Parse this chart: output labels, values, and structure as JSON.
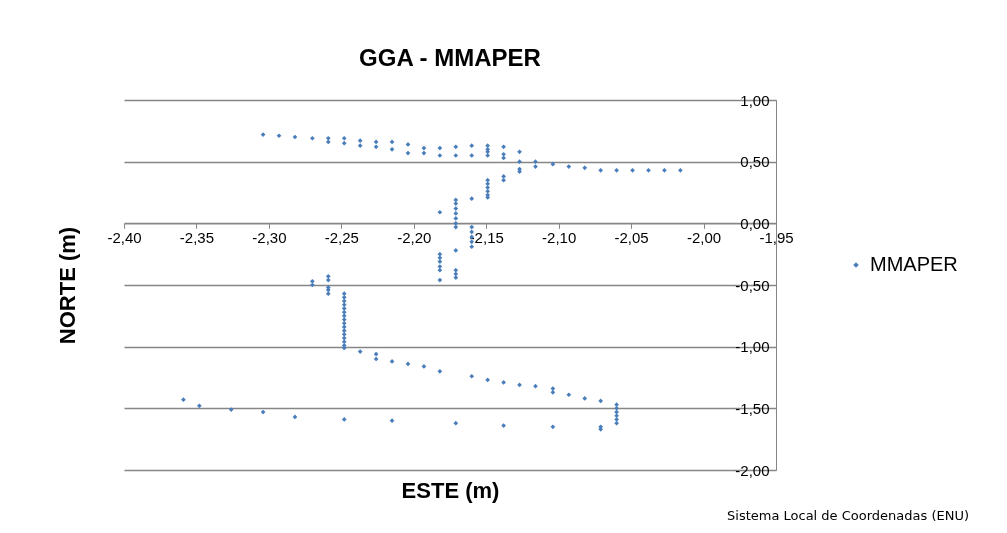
{
  "chart_data": {
    "type": "scatter",
    "title": "GGA - MMAPER",
    "xlabel": "ESTE (m)",
    "ylabel": "NORTE (m)",
    "annotations": [
      "Sistema Local de Coordenadas (ENU)"
    ],
    "xlim": [
      -2.4,
      -1.95
    ],
    "ylim": [
      -2.0,
      1.0
    ],
    "xticks": [
      {
        "value": -2.4,
        "label": "-2,40"
      },
      {
        "value": -2.35,
        "label": "-2,35"
      },
      {
        "value": -2.3,
        "label": "-2,30"
      },
      {
        "value": -2.25,
        "label": "-2,25"
      },
      {
        "value": -2.2,
        "label": "-2,20"
      },
      {
        "value": -2.15,
        "label": "-2,15"
      },
      {
        "value": -2.1,
        "label": "-2,10"
      },
      {
        "value": -2.05,
        "label": "-2,05"
      },
      {
        "value": -2.0,
        "label": "-2,00"
      },
      {
        "value": -1.95,
        "label": "-1,95"
      }
    ],
    "yticks": [
      {
        "value": 1.0,
        "label": "1,00"
      },
      {
        "value": 0.5,
        "label": "0,50"
      },
      {
        "value": 0.0,
        "label": "0,00"
      },
      {
        "value": -0.5,
        "label": "-0,50"
      },
      {
        "value": -1.0,
        "label": "-1,00"
      },
      {
        "value": -1.5,
        "label": "-1,50"
      },
      {
        "value": -2.0,
        "label": "-2,00"
      }
    ],
    "grid": "y",
    "legend": "right",
    "marker": "diamond",
    "series": [
      {
        "name": "MMAPER",
        "color": "#4a7ebb",
        "x": [
          -2.304,
          -2.293,
          -2.282,
          -2.27,
          -2.259,
          -2.259,
          -2.248,
          -2.248,
          -2.237,
          -2.237,
          -2.226,
          -2.226,
          -2.215,
          -2.215,
          -2.204,
          -2.204,
          -2.193,
          -2.193,
          -2.182,
          -2.182,
          -2.171,
          -2.171,
          -2.16,
          -2.16,
          -2.149,
          -2.149,
          -2.149,
          -2.149,
          -2.138,
          -2.138,
          -2.138,
          -2.127,
          -2.127,
          -2.127,
          -2.127,
          -2.116,
          -2.116,
          -2.104,
          -2.093,
          -2.082,
          -2.071,
          -2.06,
          -2.049,
          -2.038,
          -2.027,
          -2.016,
          -2.138,
          -2.138,
          -2.149,
          -2.149,
          -2.149,
          -2.149,
          -2.149,
          -2.149,
          -2.16,
          -2.171,
          -2.171,
          -2.171,
          -2.171,
          -2.171,
          -2.171,
          -2.171,
          -2.182,
          -2.16,
          -2.16,
          -2.16,
          -2.16,
          -2.16,
          -2.171,
          -2.182,
          -2.182,
          -2.182,
          -2.182,
          -2.182,
          -2.182,
          -2.171,
          -2.171,
          -2.171,
          -2.27,
          -2.27,
          -2.259,
          -2.259,
          -2.259,
          -2.259,
          -2.259,
          -2.248,
          -2.248,
          -2.248,
          -2.248,
          -2.248,
          -2.248,
          -2.248,
          -2.248,
          -2.248,
          -2.248,
          -2.248,
          -2.248,
          -2.248,
          -2.248,
          -2.248,
          -2.248,
          -2.237,
          -2.226,
          -2.226,
          -2.215,
          -2.204,
          -2.193,
          -2.182,
          -2.16,
          -2.149,
          -2.138,
          -2.127,
          -2.116,
          -2.104,
          -2.104,
          -2.093,
          -2.082,
          -2.071,
          -2.06,
          -2.06,
          -2.06,
          -2.06,
          -2.06,
          -2.06,
          -2.071,
          -2.071,
          -2.359,
          -2.348,
          -2.326,
          -2.304,
          -2.282,
          -2.248,
          -2.215,
          -2.171,
          -2.138,
          -2.104
        ],
        "values": [
          0.72,
          0.71,
          0.7,
          0.69,
          0.69,
          0.66,
          0.69,
          0.65,
          0.67,
          0.63,
          0.66,
          0.62,
          0.66,
          0.6,
          0.64,
          0.57,
          0.61,
          0.57,
          0.61,
          0.55,
          0.62,
          0.55,
          0.63,
          0.55,
          0.63,
          0.6,
          0.58,
          0.55,
          0.62,
          0.56,
          0.53,
          0.58,
          0.5,
          0.44,
          0.42,
          0.5,
          0.46,
          0.48,
          0.46,
          0.45,
          0.43,
          0.43,
          0.43,
          0.43,
          0.43,
          0.43,
          0.38,
          0.35,
          0.35,
          0.32,
          0.29,
          0.26,
          0.23,
          0.21,
          0.2,
          0.19,
          0.16,
          0.12,
          0.08,
          0.04,
          0.0,
          -0.03,
          0.09,
          -0.03,
          -0.07,
          -0.11,
          -0.15,
          -0.19,
          -0.22,
          -0.25,
          -0.28,
          -0.31,
          -0.35,
          -0.38,
          -0.46,
          -0.38,
          -0.41,
          -0.44,
          -0.47,
          -0.5,
          -0.43,
          -0.46,
          -0.52,
          -0.54,
          -0.57,
          -0.57,
          -0.6,
          -0.63,
          -0.66,
          -0.69,
          -0.72,
          -0.75,
          -0.78,
          -0.81,
          -0.84,
          -0.87,
          -0.9,
          -0.93,
          -0.96,
          -0.99,
          -1.01,
          -1.04,
          -1.06,
          -1.1,
          -1.12,
          -1.14,
          -1.16,
          -1.2,
          -1.24,
          -1.27,
          -1.29,
          -1.31,
          -1.32,
          -1.34,
          -1.37,
          -1.39,
          -1.42,
          -1.44,
          -1.47,
          -1.5,
          -1.53,
          -1.56,
          -1.59,
          -1.62,
          -1.65,
          -1.67,
          -1.43,
          -1.48,
          -1.51,
          -1.53,
          -1.57,
          -1.59,
          -1.6,
          -1.62,
          -1.64,
          -1.65
        ]
      }
    ]
  }
}
